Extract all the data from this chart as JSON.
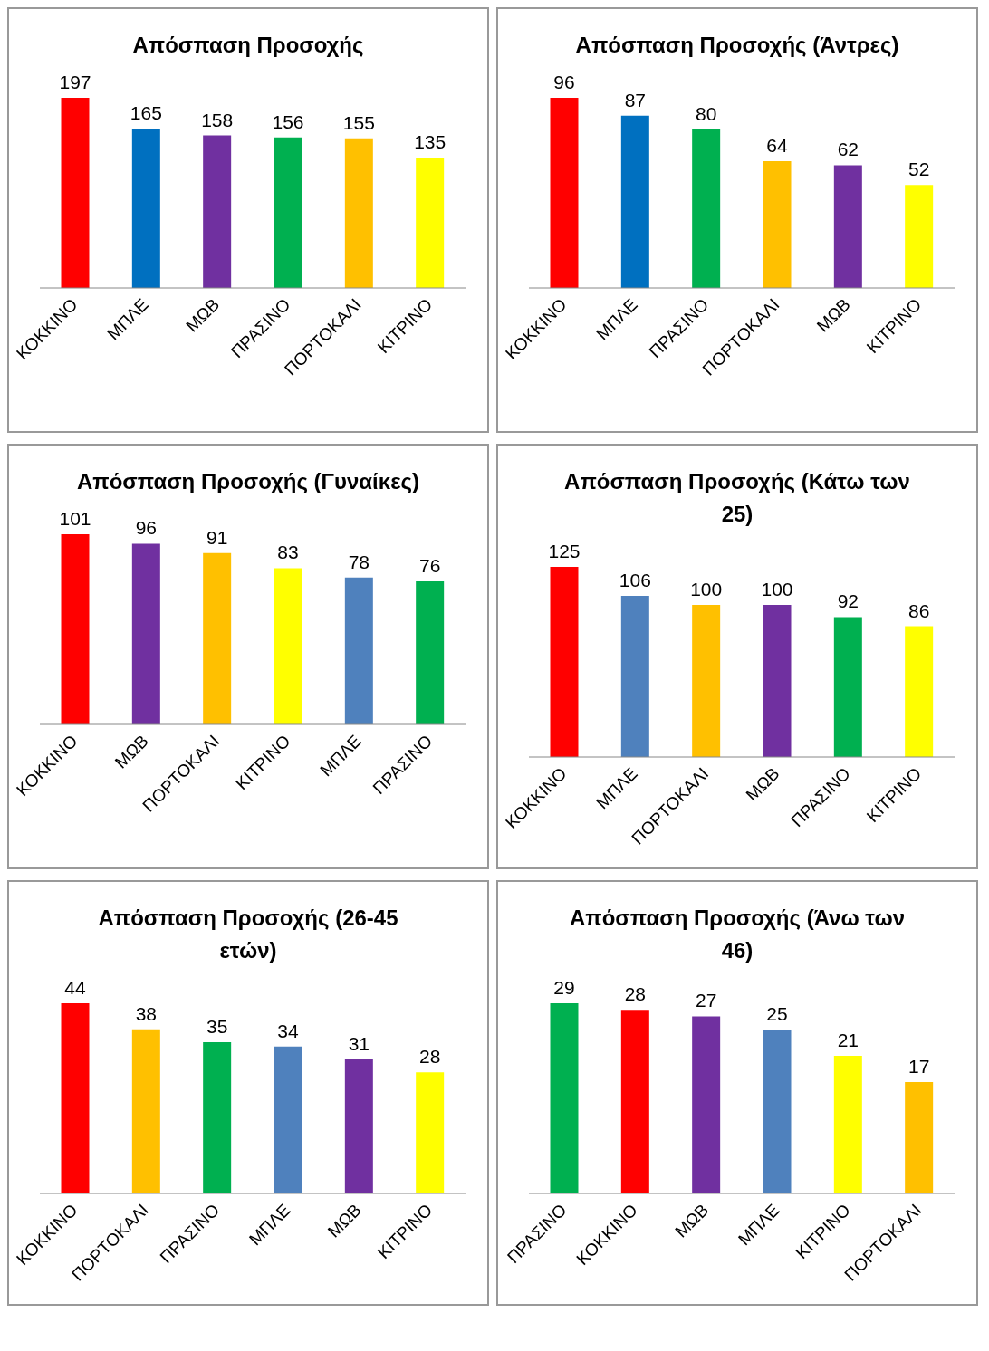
{
  "chart_data": [
    {
      "type": "bar",
      "title": "Απόσπαση Προσοχής",
      "categories": [
        "ΚΟΚΚΙΝΟ",
        "ΜΠΛΕ",
        "ΜΩΒ",
        "ΠΡΑΣΙΝΟ",
        "ΠΟΡΤΟΚΑΛΙ",
        "ΚΙΤΡΙΝΟ"
      ],
      "values": [
        197,
        165,
        158,
        156,
        155,
        135
      ],
      "colors": [
        "#ff0000",
        "#0070c0",
        "#7030a0",
        "#00b050",
        "#ffc000",
        "#ffff00"
      ],
      "data_labels": true
    },
    {
      "type": "bar",
      "title": "Απόσπαση Προσοχής (Άντρες)",
      "categories": [
        "ΚΟΚΚΙΝΟ",
        "ΜΠΛΕ",
        "ΠΡΑΣΙΝΟ",
        "ΠΟΡΤΟΚΑΛΙ",
        "ΜΩΒ",
        "ΚΙΤΡΙΝΟ"
      ],
      "values": [
        96,
        87,
        80,
        64,
        62,
        52
      ],
      "colors": [
        "#ff0000",
        "#0070c0",
        "#00b050",
        "#ffc000",
        "#7030a0",
        "#ffff00"
      ],
      "data_labels": true
    },
    {
      "type": "bar",
      "title": "Απόσπαση Προσοχής (Γυναίκες)",
      "categories": [
        "ΚΟΚΚΙΝΟ",
        "ΜΩΒ",
        "ΠΟΡΤΟΚΑΛΙ",
        "ΚΙΤΡΙΝΟ",
        "ΜΠΛΕ",
        "ΠΡΑΣΙΝΟ"
      ],
      "values": [
        101,
        96,
        91,
        83,
        78,
        76
      ],
      "colors": [
        "#ff0000",
        "#7030a0",
        "#ffc000",
        "#ffff00",
        "#4f81bd",
        "#00b050"
      ],
      "data_labels": true
    },
    {
      "type": "bar",
      "title": "Απόσπαση Προσοχής (Κάτω των 25)",
      "categories": [
        "ΚΟΚΚΙΝΟ",
        "ΜΠΛΕ",
        "ΠΟΡΤΟΚΑΛΙ",
        "ΜΩΒ",
        "ΠΡΑΣΙΝΟ",
        "ΚΙΤΡΙΝΟ"
      ],
      "values": [
        125,
        106,
        100,
        100,
        92,
        86
      ],
      "colors": [
        "#ff0000",
        "#4f81bd",
        "#ffc000",
        "#7030a0",
        "#00b050",
        "#ffff00"
      ],
      "data_labels": true
    },
    {
      "type": "bar",
      "title": "Απόσπαση Προσοχής (26-45 ετών)",
      "categories": [
        "ΚΟΚΚΙΝΟ",
        "ΠΟΡΤΟΚΑΛΙ",
        "ΠΡΑΣΙΝΟ",
        "ΜΠΛΕ",
        "ΜΩΒ",
        "ΚΙΤΡΙΝΟ"
      ],
      "values": [
        44,
        38,
        35,
        34,
        31,
        28
      ],
      "colors": [
        "#ff0000",
        "#ffc000",
        "#00b050",
        "#4f81bd",
        "#7030a0",
        "#ffff00"
      ],
      "data_labels": true
    },
    {
      "type": "bar",
      "title": "Απόσπαση Προσοχής (Άνω των 46)",
      "categories": [
        "ΠΡΑΣΙΝΟ",
        "ΚΟΚΚΙΝΟ",
        "ΜΩΒ",
        "ΜΠΛΕ",
        "ΚΙΤΡΙΝΟ",
        "ΠΟΡΤΟΚΑΛΙ"
      ],
      "values": [
        29,
        28,
        27,
        25,
        21,
        17
      ],
      "colors": [
        "#00b050",
        "#ff0000",
        "#7030a0",
        "#4f81bd",
        "#ffff00",
        "#ffc000"
      ],
      "data_labels": true
    }
  ]
}
